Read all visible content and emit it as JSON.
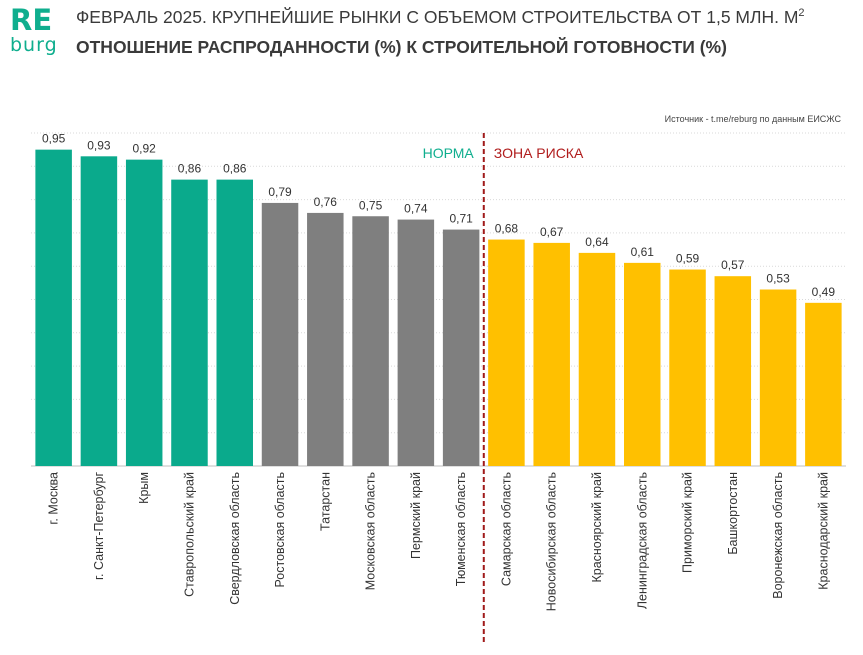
{
  "logo": {
    "top": "RE",
    "bottom": "burg"
  },
  "header": {
    "title_line1": "ФЕВРАЛЬ 2025. КРУПНЕЙШИЕ РЫНКИ С ОБЪЕМОМ СТРОИТЕЛЬСТВА ОТ 1,5 МЛН. М",
    "title_sup": "2",
    "title_line2": "ОТНОШЕНИЕ РАСПРОДАННОСТИ (%) К СТРОИТЕЛЬНОЙ ГОТОВНОСТИ (%)"
  },
  "source": "Источник - t.me/reburg по данным ЕИСЖС",
  "colors": {
    "norm": "#0aaa8c",
    "mid": "#7f7f7f",
    "risk": "#ffc000",
    "divider": "#a01a1a",
    "zone_norm_text": "#0fae8e",
    "zone_risk_text": "#b01c1c",
    "grid": "#d9d9d9"
  },
  "chart_data": {
    "type": "bar",
    "title": "Отношение распроданности (%) к строительной готовности (%)",
    "categories": [
      "г. Москва",
      "г. Санкт-Петербург",
      "Крым",
      "Ставропольский край",
      "Свердловская область",
      "Ростовская область",
      "Татарстан",
      "Московская область",
      "Пермский край",
      "Тюменская область",
      "Самарская область",
      "Новосибирская область",
      "Красноярский край",
      "Ленинградская область",
      "Приморский край",
      "Башкортостан",
      "Воронежская область",
      "Краснодарский край"
    ],
    "values": [
      0.95,
      0.93,
      0.92,
      0.86,
      0.86,
      0.79,
      0.76,
      0.75,
      0.74,
      0.71,
      0.68,
      0.67,
      0.64,
      0.61,
      0.59,
      0.57,
      0.53,
      0.49
    ],
    "value_labels": [
      "0,95",
      "0,93",
      "0,92",
      "0,86",
      "0,86",
      "0,79",
      "0,76",
      "0,75",
      "0,74",
      "0,71",
      "0,68",
      "0,67",
      "0,64",
      "0,61",
      "0,59",
      "0,57",
      "0,53",
      "0,49"
    ],
    "groups": [
      "norm",
      "norm",
      "norm",
      "norm",
      "norm",
      "mid",
      "mid",
      "mid",
      "mid",
      "mid",
      "risk",
      "risk",
      "risk",
      "risk",
      "risk",
      "risk",
      "risk",
      "risk"
    ],
    "ylim": [
      0,
      1.0
    ],
    "grid": true,
    "zones": {
      "norm_label": "НОРМА",
      "risk_label": "ЗОНА РИСКА",
      "divider_after_index": 9
    },
    "xlabel": "",
    "ylabel": ""
  }
}
